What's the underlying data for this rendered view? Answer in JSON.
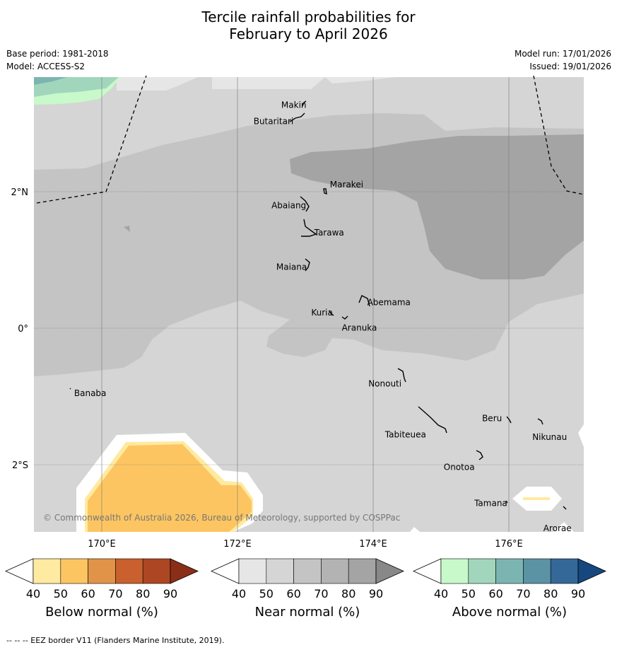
{
  "title_line1": "Tercile rainfall probabilities for",
  "title_line2": "February to April 2026",
  "base_period": "Base period: 1981-2018",
  "model": "Model: ACCESS-S2",
  "model_run": "Model run: 17/01/2026",
  "issued": "Issued: 19/01/2026",
  "copyright": "© Commonwealth of Australia 2026, Bureau of Meteorology, supported by COSPPac",
  "footer": "--  --  -- EEZ border V11 (Flanders Marine Institute, 2019).",
  "lat_labels": [
    "2°N",
    "0°",
    "2°S"
  ],
  "lon_labels": [
    "170°E",
    "172°E",
    "174°E",
    "176°E"
  ],
  "places": [
    {
      "name": "Makin",
      "lon": 173.02,
      "lat": 3.23
    },
    {
      "name": "Butaritari",
      "lon": 172.82,
      "lat": 3.07
    },
    {
      "name": "Marakei",
      "lon": 173.3,
      "lat": 2.0
    },
    {
      "name": "Abaiang",
      "lon": 172.98,
      "lat": 1.84
    },
    {
      "name": "Tarawa",
      "lon": 173.1,
      "lat": 1.43
    },
    {
      "name": "Maiana",
      "lon": 173.03,
      "lat": 0.93
    },
    {
      "name": "Abemama",
      "lon": 173.85,
      "lat": 0.4
    },
    {
      "name": "Kuria",
      "lon": 173.42,
      "lat": 0.23
    },
    {
      "name": "Aranuka",
      "lon": 173.6,
      "lat": 0.16
    },
    {
      "name": "Nonouti",
      "lon": 174.45,
      "lat": -0.65
    },
    {
      "name": "Banaba",
      "lon": 169.53,
      "lat": -0.86
    },
    {
      "name": "Tabiteuea",
      "lon": 174.8,
      "lat": -1.35
    },
    {
      "name": "Beru",
      "lon": 175.98,
      "lat": -1.33
    },
    {
      "name": "Nikunau",
      "lon": 176.45,
      "lat": -1.36
    },
    {
      "name": "Onotoa",
      "lon": 175.56,
      "lat": -1.8
    },
    {
      "name": "Tamana",
      "lon": 175.98,
      "lat": -2.5
    },
    {
      "name": "Arorae",
      "lon": 176.82,
      "lat": -2.64
    }
  ],
  "legends": [
    {
      "title": "Below normal (%)",
      "ticks": [
        "40",
        "50",
        "60",
        "70",
        "80",
        "90"
      ],
      "colors": [
        "#ffffff",
        "#feeaa0",
        "#fdc561",
        "#e19447",
        "#c9602e",
        "#ad4622",
        "#8a2f17"
      ]
    },
    {
      "title": "Near normal (%)",
      "ticks": [
        "40",
        "50",
        "60",
        "70",
        "80",
        "90"
      ],
      "colors": [
        "#ffffff",
        "#e6e6e6",
        "#d5d5d5",
        "#c4c4c4",
        "#b3b3b3",
        "#a4a4a4",
        "#888888"
      ]
    },
    {
      "title": "Above normal (%)",
      "ticks": [
        "40",
        "50",
        "60",
        "70",
        "80",
        "90"
      ],
      "colors": [
        "#ffffff",
        "#c8f9ca",
        "#a2d6bc",
        "#7bb5b2",
        "#5b93a4",
        "#346898",
        "#16477f"
      ]
    }
  ],
  "colors": {
    "near_40": "#e6e6e6",
    "near_50": "#d5d5d5",
    "near_60": "#c4c4c4",
    "near_70": "#a4a4a4",
    "below_50": "#feeaa0",
    "below_60": "#fdc561",
    "above_50": "#c8f9ca",
    "above_60": "#a2d6bc",
    "above_70": "#7bb5b2"
  }
}
